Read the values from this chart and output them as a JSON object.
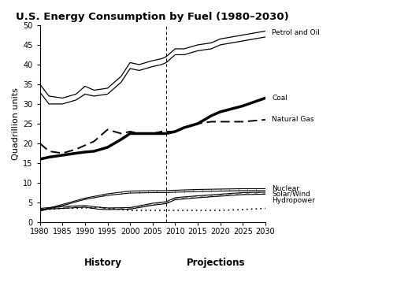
{
  "title": "U.S. Energy Consumption by Fuel (1980–2030)",
  "ylabel": "Quadrillion units",
  "xlabel_history": "History",
  "xlabel_projections": "Projections",
  "ylim": [
    0,
    50
  ],
  "xlim": [
    1980,
    2030
  ],
  "yticks": [
    0,
    5,
    10,
    15,
    20,
    25,
    30,
    35,
    40,
    45,
    50
  ],
  "xticks": [
    1980,
    1985,
    1990,
    1995,
    2000,
    2005,
    2010,
    2015,
    2020,
    2025,
    2030
  ],
  "projection_start": 2008,
  "petrol_upper": {
    "years": [
      1980,
      1982,
      1985,
      1988,
      1990,
      1992,
      1995,
      1998,
      2000,
      2002,
      2005,
      2007,
      2008,
      2010,
      2012,
      2015,
      2018,
      2020,
      2025,
      2030
    ],
    "values": [
      35.0,
      32.0,
      31.5,
      32.5,
      34.5,
      33.5,
      34.0,
      37.0,
      40.5,
      40.0,
      41.0,
      41.5,
      42.0,
      44.0,
      44.0,
      45.0,
      45.5,
      46.5,
      47.5,
      48.5
    ]
  },
  "petrol_lower": {
    "years": [
      1980,
      1982,
      1985,
      1988,
      1990,
      1992,
      1995,
      1998,
      2000,
      2002,
      2005,
      2007,
      2008,
      2010,
      2012,
      2015,
      2018,
      2020,
      2025,
      2030
    ],
    "values": [
      33.0,
      30.0,
      30.0,
      31.0,
      32.5,
      32.0,
      32.5,
      35.5,
      39.0,
      38.5,
      39.5,
      40.0,
      40.5,
      42.5,
      42.5,
      43.5,
      44.0,
      45.0,
      46.0,
      47.0
    ]
  },
  "coal": {
    "years": [
      1980,
      1982,
      1985,
      1988,
      1990,
      1992,
      1995,
      1998,
      2000,
      2002,
      2005,
      2007,
      2008,
      2010,
      2012,
      2015,
      2018,
      2020,
      2025,
      2030
    ],
    "values": [
      16.0,
      16.5,
      17.0,
      17.5,
      17.8,
      18.0,
      19.0,
      21.0,
      22.5,
      22.5,
      22.5,
      22.5,
      22.5,
      23.0,
      24.0,
      25.0,
      27.0,
      28.0,
      29.5,
      31.5
    ]
  },
  "natural_gas": {
    "years": [
      1980,
      1982,
      1985,
      1988,
      1990,
      1992,
      1995,
      1998,
      2000,
      2002,
      2005,
      2007,
      2008,
      2010,
      2012,
      2015,
      2018,
      2020,
      2025,
      2030
    ],
    "values": [
      20.0,
      18.0,
      17.5,
      18.5,
      19.5,
      20.5,
      23.5,
      22.5,
      23.0,
      22.5,
      22.5,
      23.0,
      23.0,
      23.0,
      24.0,
      25.0,
      25.5,
      25.5,
      25.5,
      26.0
    ]
  },
  "nuclear_upper": {
    "years": [
      1980,
      1985,
      1990,
      1995,
      2000,
      2005,
      2008,
      2010,
      2015,
      2020,
      2025,
      2030
    ],
    "values": [
      3.0,
      4.5,
      6.1,
      7.2,
      7.9,
      8.0,
      8.0,
      8.1,
      8.3,
      8.4,
      8.5,
      8.5
    ]
  },
  "nuclear_lower": {
    "years": [
      1980,
      1985,
      1990,
      1995,
      2000,
      2005,
      2008,
      2010,
      2015,
      2020,
      2025,
      2030
    ],
    "values": [
      2.8,
      4.2,
      5.8,
      6.8,
      7.4,
      7.5,
      7.5,
      7.6,
      7.8,
      7.9,
      8.0,
      8.0
    ]
  },
  "solar_wind_upper": {
    "years": [
      1980,
      1985,
      1990,
      1993,
      1995,
      2000,
      2005,
      2008,
      2010,
      2015,
      2020,
      2025,
      2030
    ],
    "values": [
      3.5,
      4.0,
      4.2,
      3.8,
      3.6,
      3.7,
      4.8,
      5.2,
      6.2,
      6.7,
      7.1,
      7.5,
      7.6
    ]
  },
  "solar_wind_lower": {
    "years": [
      1980,
      1985,
      1990,
      1993,
      1995,
      2000,
      2005,
      2008,
      2010,
      2015,
      2020,
      2025,
      2030
    ],
    "values": [
      3.2,
      3.5,
      3.8,
      3.3,
      3.2,
      3.3,
      4.3,
      4.7,
      5.7,
      6.2,
      6.6,
      7.0,
      7.1
    ]
  },
  "hydropower": {
    "years": [
      1980,
      1985,
      1990,
      1993,
      1995,
      2000,
      2005,
      2008,
      2010,
      2015,
      2020,
      2025,
      2030
    ],
    "values": [
      3.1,
      3.5,
      3.6,
      3.8,
      3.5,
      3.0,
      3.0,
      3.0,
      3.0,
      3.0,
      3.0,
      3.2,
      3.5
    ]
  },
  "background_color": "#ffffff",
  "line_color": "#000000"
}
